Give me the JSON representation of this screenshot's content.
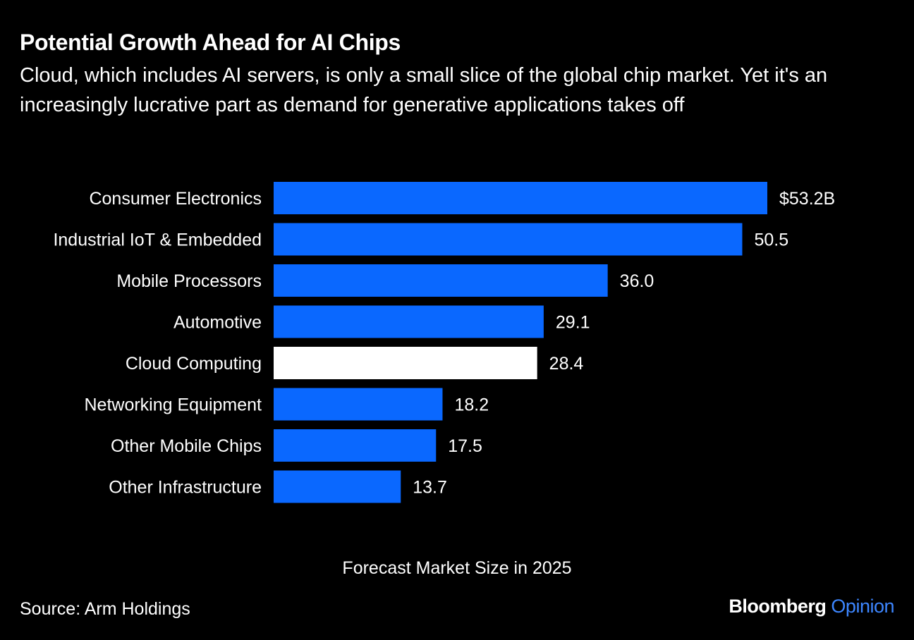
{
  "title": "Potential Growth Ahead for AI Chips",
  "subtitle": "Cloud, which includes AI servers, is only a small slice of the global chip market. Yet it's an increasingly lucrative part as demand for generative applications takes off",
  "source": "Source: Arm Holdings",
  "brand": {
    "name": "Bloomberg",
    "suffix": "Opinion"
  },
  "colors": {
    "background": "#000000",
    "bar": "#0a68ff",
    "highlight": "#ffffff",
    "brand_accent": "#3d86ff"
  },
  "chart_data": {
    "type": "bar",
    "orientation": "horizontal",
    "xlabel": "Forecast Market Size in 2025",
    "categories": [
      "Consumer Electronics",
      "Industrial IoT & Embedded",
      "Mobile Processors",
      "Automotive",
      "Cloud Computing",
      "Networking Equipment",
      "Other Mobile Chips",
      "Other Infrastructure"
    ],
    "values": [
      53.2,
      50.5,
      36.0,
      29.1,
      28.4,
      18.2,
      17.5,
      13.7
    ],
    "value_labels": [
      "$53.2B",
      "50.5",
      "36.0",
      "29.1",
      "28.4",
      "18.2",
      "17.5",
      "13.7"
    ],
    "highlight_category": "Cloud Computing",
    "xlim": [
      0,
      53.2
    ],
    "grid": false,
    "legend": "none"
  }
}
